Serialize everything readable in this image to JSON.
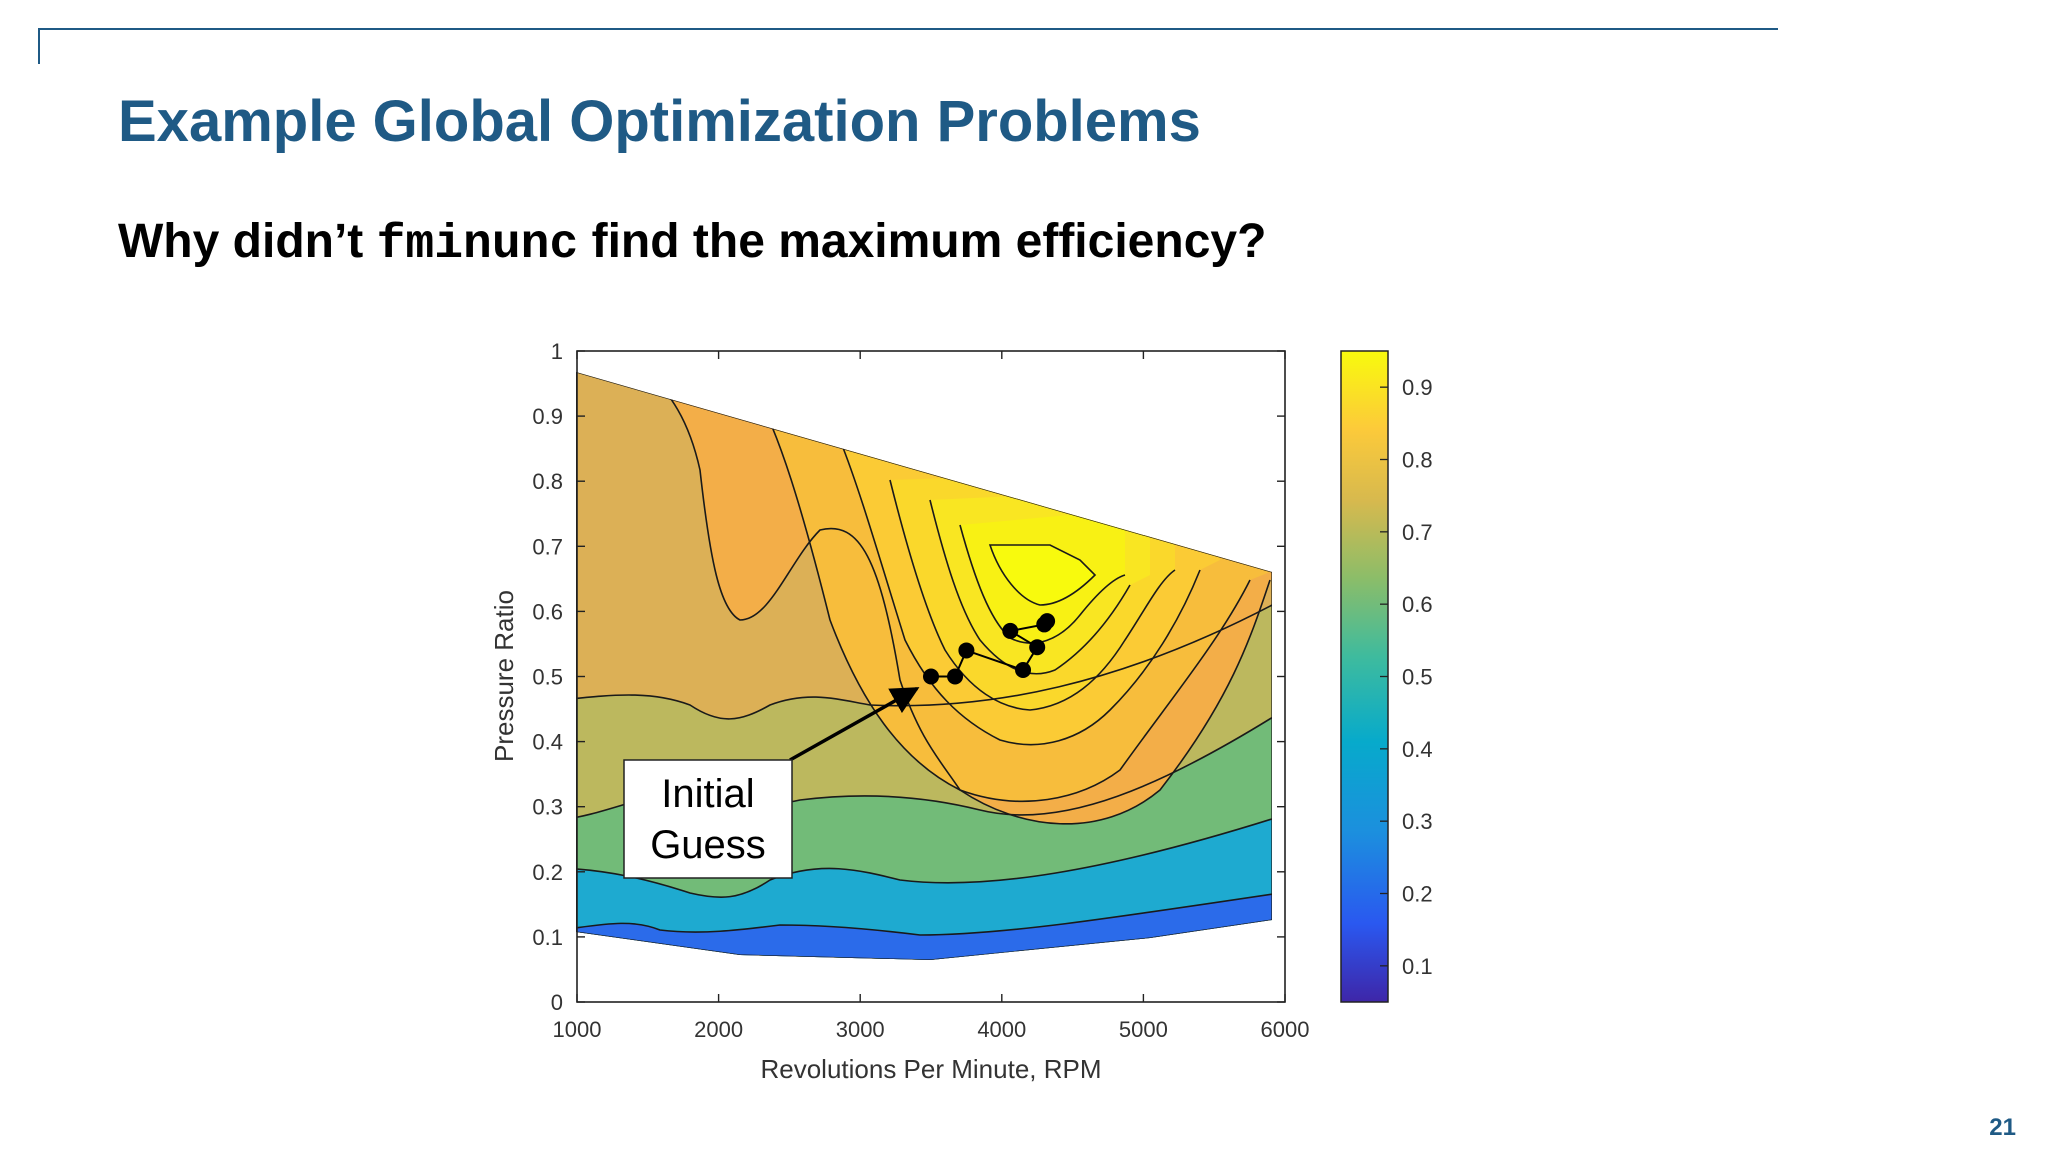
{
  "slide": {
    "title": "Example Global Optimization Problems",
    "question_prefix": "Why didn’t ",
    "question_code": "fminunc",
    "question_suffix": " find the maximum efficiency?",
    "page_number": "21",
    "accent_color": "#1f5a85"
  },
  "chart_data": {
    "type": "contour",
    "xlabel": "Revolutions Per Minute, RPM",
    "ylabel": "Pressure Ratio",
    "xlim": [
      1000,
      6000
    ],
    "ylim": [
      0,
      1
    ],
    "xticks": [
      "1000",
      "2000",
      "3000",
      "4000",
      "5000",
      "6000"
    ],
    "yticks": [
      "0",
      "0.1",
      "0.2",
      "0.3",
      "0.4",
      "0.5",
      "0.6",
      "0.7",
      "0.8",
      "0.9",
      "1"
    ],
    "colorbar": {
      "ticks": [
        "0.1",
        "0.2",
        "0.3",
        "0.4",
        "0.5",
        "0.6",
        "0.7",
        "0.8",
        "0.9"
      ],
      "range": [
        0.05,
        0.95
      ],
      "colormap": "parula"
    },
    "optimizer_path": [
      {
        "x": 3500,
        "y": 0.5
      },
      {
        "x": 3670,
        "y": 0.5
      },
      {
        "x": 3750,
        "y": 0.54
      },
      {
        "x": 4150,
        "y": 0.51
      },
      {
        "x": 4250,
        "y": 0.545
      },
      {
        "x": 4060,
        "y": 0.57
      },
      {
        "x": 4300,
        "y": 0.58
      },
      {
        "x": 4320,
        "y": 0.585
      }
    ],
    "annotation": {
      "lines": [
        "Initial",
        "Guess"
      ],
      "arrow_to": {
        "x": 3500,
        "y": 0.5
      }
    }
  }
}
